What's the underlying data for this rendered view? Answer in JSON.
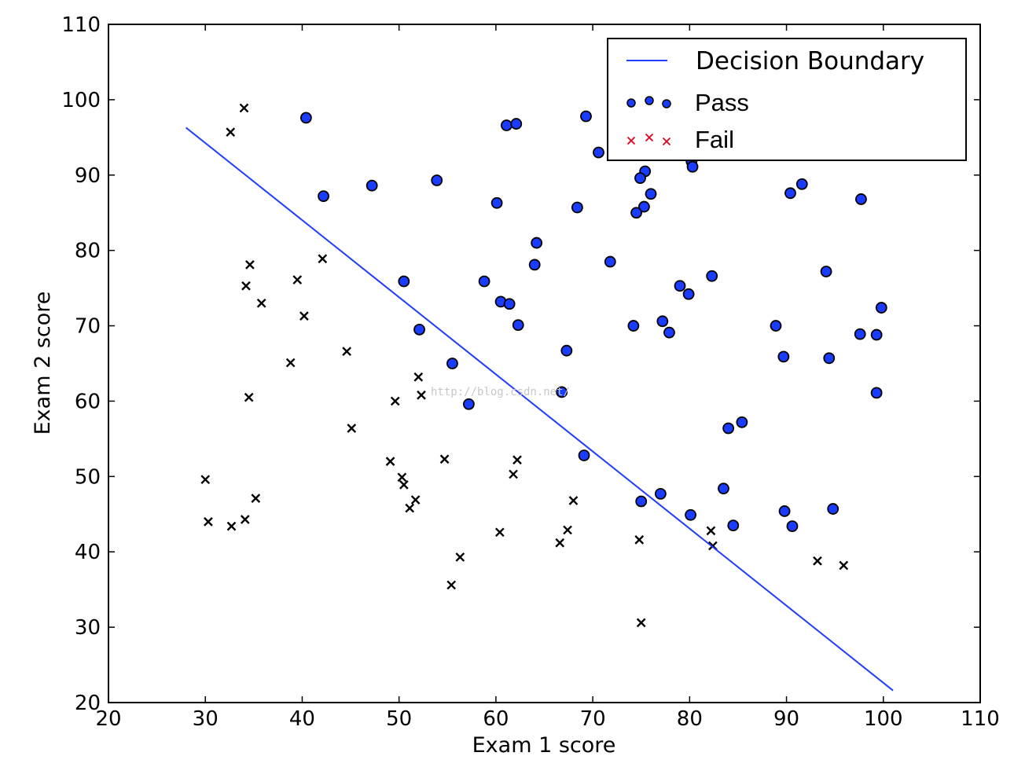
{
  "chart_data": {
    "type": "scatter",
    "xlabel": "Exam 1 score",
    "ylabel": "Exam 2 score",
    "xlim": [
      20,
      110
    ],
    "ylim": [
      20,
      110
    ],
    "xticks": [
      "20",
      "30",
      "40",
      "50",
      "60",
      "70",
      "80",
      "90",
      "100",
      "110"
    ],
    "yticks": [
      "20",
      "30",
      "40",
      "50",
      "60",
      "70",
      "80",
      "90",
      "100",
      "110"
    ],
    "grid": false,
    "legend_position": "top-right",
    "watermark": "http://blog.csdn.net/",
    "boundary": {
      "name": "Decision Boundary",
      "color": "#1f3cff",
      "x": [
        28,
        101
      ],
      "y": [
        96.3,
        21.6
      ]
    },
    "series": [
      {
        "name": "Pass",
        "marker": "circle",
        "color": "#1a3cff",
        "points": [
          [
            40.4,
            97.6
          ],
          [
            61.1,
            96.6
          ],
          [
            62.1,
            96.8
          ],
          [
            69.3,
            97.8
          ],
          [
            70.6,
            93.0
          ],
          [
            80.2,
            91.8
          ],
          [
            80.3,
            91.1
          ],
          [
            75.4,
            90.5
          ],
          [
            74.9,
            89.6
          ],
          [
            91.6,
            88.8
          ],
          [
            47.2,
            88.6
          ],
          [
            53.9,
            89.3
          ],
          [
            42.2,
            87.2
          ],
          [
            76.0,
            87.5
          ],
          [
            90.4,
            87.6
          ],
          [
            97.7,
            86.8
          ],
          [
            60.1,
            86.3
          ],
          [
            68.4,
            85.7
          ],
          [
            75.3,
            85.8
          ],
          [
            74.5,
            85.0
          ],
          [
            64.2,
            81.0
          ],
          [
            64.0,
            78.1
          ],
          [
            71.8,
            78.5
          ],
          [
            82.3,
            76.6
          ],
          [
            94.1,
            77.2
          ],
          [
            50.5,
            75.9
          ],
          [
            58.8,
            75.9
          ],
          [
            79.0,
            75.3
          ],
          [
            79.9,
            74.2
          ],
          [
            60.5,
            73.2
          ],
          [
            61.4,
            72.9
          ],
          [
            99.8,
            72.4
          ],
          [
            62.3,
            70.1
          ],
          [
            74.2,
            70.0
          ],
          [
            77.2,
            70.6
          ],
          [
            77.9,
            69.1
          ],
          [
            88.9,
            70.0
          ],
          [
            52.1,
            69.5
          ],
          [
            97.6,
            68.9
          ],
          [
            99.3,
            68.8
          ],
          [
            67.3,
            66.7
          ],
          [
            89.7,
            65.9
          ],
          [
            94.4,
            65.7
          ],
          [
            55.5,
            65.0
          ],
          [
            99.3,
            61.1
          ],
          [
            66.8,
            61.2
          ],
          [
            57.2,
            59.6
          ],
          [
            85.4,
            57.2
          ],
          [
            84.0,
            56.4
          ],
          [
            69.1,
            52.8
          ],
          [
            83.5,
            48.4
          ],
          [
            77.0,
            47.7
          ],
          [
            75.0,
            46.7
          ],
          [
            94.8,
            45.7
          ],
          [
            89.8,
            45.4
          ],
          [
            80.1,
            44.9
          ],
          [
            84.5,
            43.5
          ],
          [
            90.6,
            43.4
          ]
        ]
      },
      {
        "name": "Fail",
        "marker": "x",
        "color": "#e0001b",
        "points": [
          [
            34.0,
            98.9
          ],
          [
            32.6,
            95.7
          ],
          [
            42.1,
            78.9
          ],
          [
            34.6,
            78.1
          ],
          [
            39.5,
            76.1
          ],
          [
            34.2,
            75.3
          ],
          [
            35.8,
            73.0
          ],
          [
            40.2,
            71.3
          ],
          [
            44.6,
            66.6
          ],
          [
            38.8,
            65.1
          ],
          [
            52.0,
            63.2
          ],
          [
            52.3,
            60.8
          ],
          [
            34.5,
            60.5
          ],
          [
            49.6,
            60.0
          ],
          [
            45.1,
            56.4
          ],
          [
            54.7,
            52.3
          ],
          [
            62.2,
            52.2
          ],
          [
            49.1,
            52.0
          ],
          [
            61.8,
            50.3
          ],
          [
            30.0,
            49.6
          ],
          [
            50.3,
            49.9
          ],
          [
            50.5,
            48.9
          ],
          [
            35.2,
            47.1
          ],
          [
            51.7,
            46.9
          ],
          [
            68.0,
            46.8
          ],
          [
            51.1,
            45.8
          ],
          [
            30.3,
            44.0
          ],
          [
            34.1,
            44.3
          ],
          [
            32.7,
            43.4
          ],
          [
            60.4,
            42.6
          ],
          [
            67.4,
            42.9
          ],
          [
            82.2,
            42.8
          ],
          [
            66.6,
            41.2
          ],
          [
            74.8,
            41.6
          ],
          [
            82.4,
            40.8
          ],
          [
            56.3,
            39.3
          ],
          [
            93.2,
            38.8
          ],
          [
            95.9,
            38.2
          ],
          [
            55.4,
            35.6
          ],
          [
            75.0,
            30.6
          ]
        ]
      }
    ]
  }
}
